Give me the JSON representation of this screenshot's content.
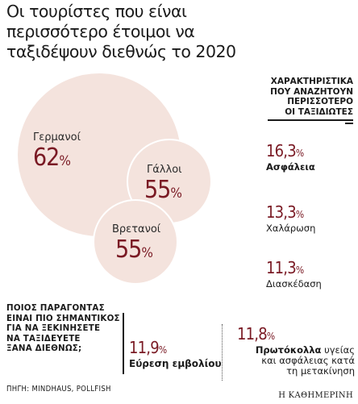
{
  "title": {
    "line1": "Οι τουρίστες που είναι",
    "line2": "περισσότερο έτοιμοι να",
    "line3": "ταξιδέψουν διεθνώς το 2020"
  },
  "colors": {
    "bubble_fill": "#f4e3dd",
    "bubble_stroke": "#ffffff",
    "accent": "#7a1a24"
  },
  "chart_data": [
    {
      "type": "bubble",
      "title": "Οι τουρίστες που είναι περισσότερο έτοιμοι να ταξιδέψουν διεθνώς το 2020",
      "unit": "%",
      "series": [
        {
          "name": "Γερμανοί",
          "value": 62
        },
        {
          "name": "Γάλλοι",
          "value": 55
        },
        {
          "name": "Βρετανοί",
          "value": 55
        }
      ]
    },
    {
      "type": "table",
      "title": "ΧΑΡΑΚΤΗΡΙΣΤΙΚΑ ΠΟΥ ΑΝΑΖΗΤΟΥΝ ΠΕΡΙΣΣΟΤΕΡΟ ΟΙ ΤΑΞΙΔΙΩΤΕΣ",
      "unit": "%",
      "categories": [
        "Ασφάλεια",
        "Χαλάρωση",
        "Διασκέδαση"
      ],
      "values": [
        16.3,
        13.3,
        11.3
      ]
    },
    {
      "type": "table",
      "title": "ΠΟΙΟΣ ΠΑΡΑΓΟΝΤΑΣ ΕΙΝΑΙ ΠΙΟ ΣΗΜΑΝΤΙΚΟΣ ΓΙΑ ΝΑ ΞΕΚΙΝΗΣΕΤΕ ΝΑ ΤΑΞΙΔΕΥΕΤΕ ΞΑΝΑ ΔΙΕΘΝΩΣ;",
      "unit": "%",
      "categories": [
        "Εύρεση εμβολίου",
        "Πρωτόκολλα υγείας και ασφάλειας κατά τη μετακίνηση"
      ],
      "values": [
        11.9,
        11.8
      ]
    }
  ],
  "bubbles": [
    {
      "name": "Γερμανοί",
      "value": "62",
      "pct": "%"
    },
    {
      "name": "Γάλλοι",
      "value": "55",
      "pct": "%"
    },
    {
      "name": "Βρετανοί",
      "value": "55",
      "pct": "%"
    }
  ],
  "right_header": {
    "line1": "ΧΑΡΑΚΤΗΡΙΣΤΙΚΑ",
    "line2": "ΠΟΥ ΑΝΑΖΗΤΟΥΝ",
    "line3": "ΠΕΡΙΣΣΟΤΕΡΟ",
    "line4": "ΟΙ ΤΑΞΙΔΙΩΤΕΣ"
  },
  "right_items": [
    {
      "value": "16,3",
      "pct": "%",
      "label": "Ασφάλεια"
    },
    {
      "value": "13,3",
      "pct": "%",
      "label": "Χαλάρωση"
    },
    {
      "value": "11,3",
      "pct": "%",
      "label": "Διασκέδαση"
    }
  ],
  "question": {
    "line1": "ΠΟΙΟΣ ΠΑΡΑΓΟΝΤΑΣ",
    "line2": "ΕΙΝΑΙ ΠΙΟ ΣΗΜΑΝΤΙΚΟΣ",
    "line3": "ΓΙΑ ΝΑ ΞΕΚΙΝΗΣΕΤΕ",
    "line4": "ΝΑ ΤΑΞΙΔΕΥΕΤΕ",
    "line5": "ΞΑΝΑ ΔΙΕΘΝΩΣ;"
  },
  "factors": [
    {
      "value": "11,9",
      "pct": "%",
      "label": "Εύρεση εμβολίου"
    },
    {
      "value": "11,8",
      "pct": "%",
      "label_bold": "Πρωτόκολλα",
      "label_rest": " υγείας",
      "label_line2": "και ασφάλειας κατά",
      "label_line3": "τη μετακίνηση"
    }
  ],
  "source": "ΠΗΓΗ: MINDHAUS, POLLFISH",
  "logo": "Η ΚΑΘΗΜΕΡΙΝΗ"
}
